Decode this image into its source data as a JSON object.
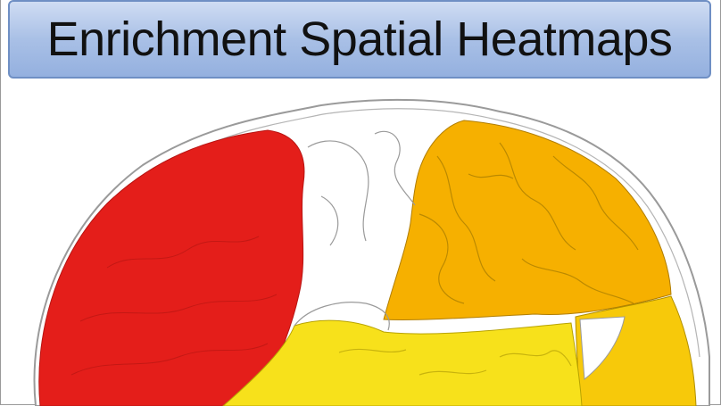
{
  "header": {
    "title": "Enrichment Spatial Heatmaps"
  },
  "heatmap": {
    "regions": [
      {
        "name": "frontal-region",
        "color": "#e41e1a"
      },
      {
        "name": "parietal-region",
        "color": "#f6b000"
      },
      {
        "name": "temporal-region",
        "color": "#f7e11b"
      },
      {
        "name": "occipital-region",
        "color": "#f7c90a"
      },
      {
        "name": "unenriched-region",
        "color": "#ffffff"
      }
    ],
    "outline_color": "#8c8c8c"
  }
}
